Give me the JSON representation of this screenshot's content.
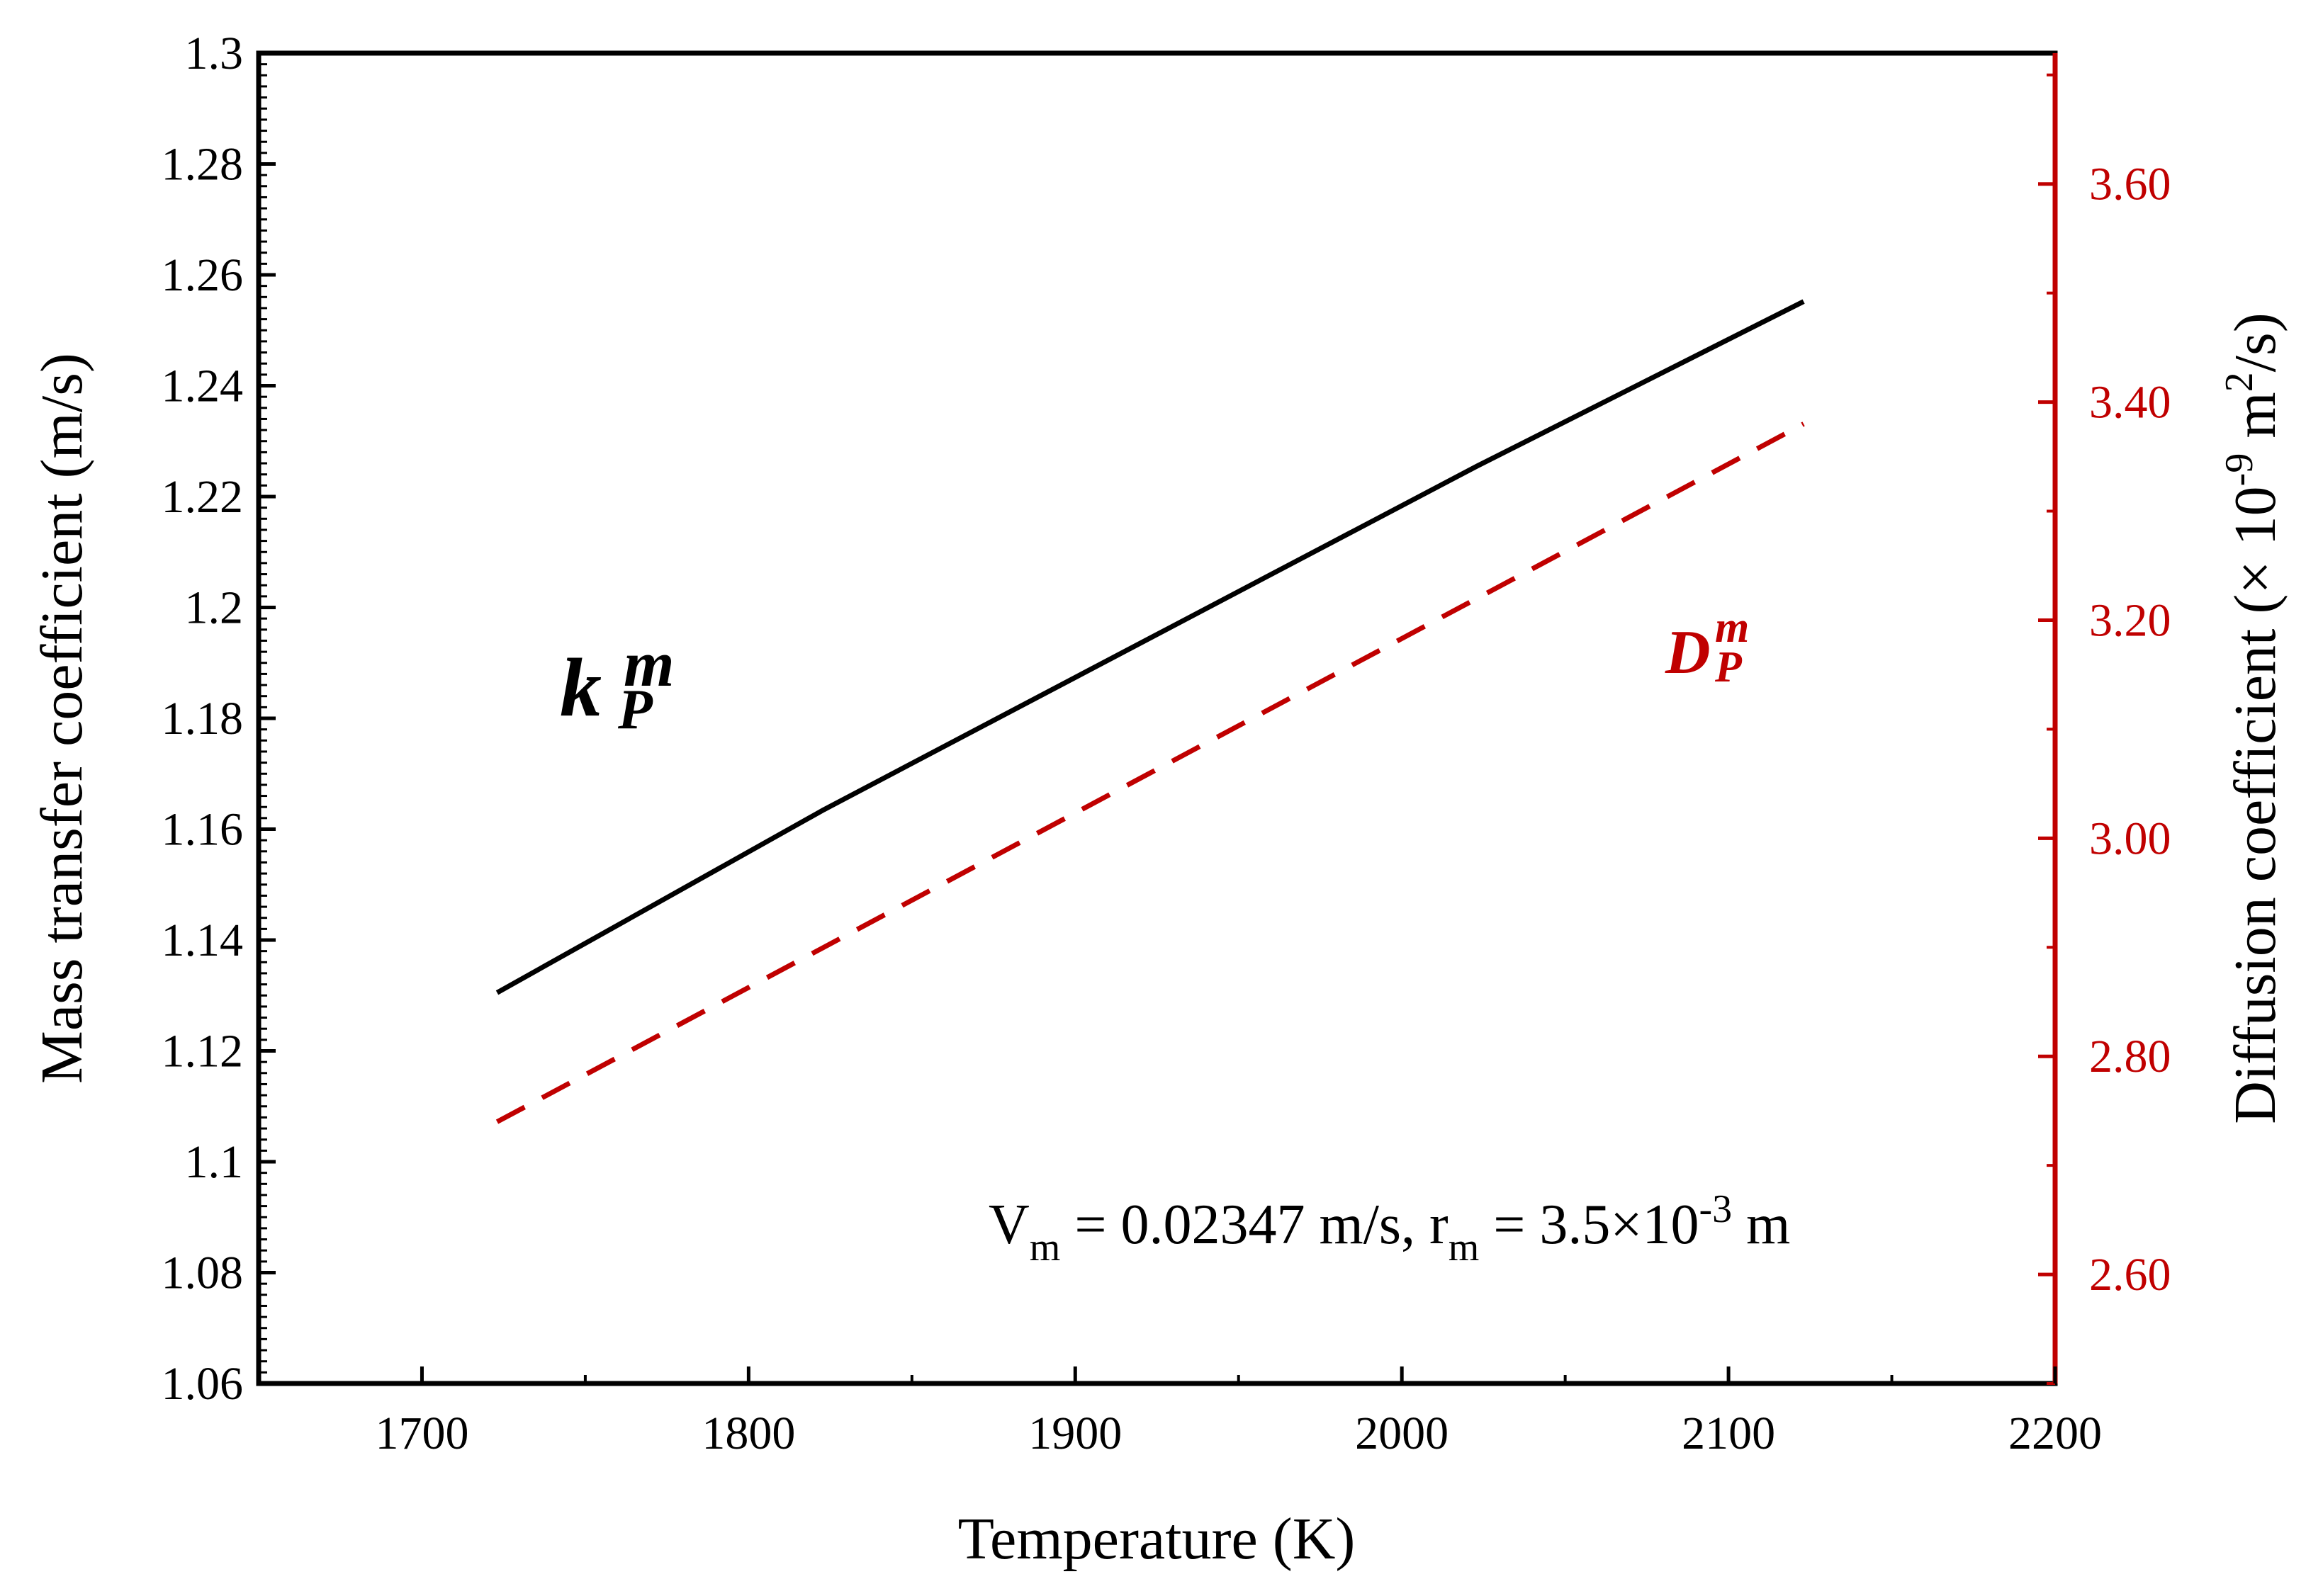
{
  "chart_data": {
    "type": "line",
    "x": [
      1723,
      1823,
      1923,
      2023,
      2123
    ],
    "xlim": [
      1650,
      2200
    ],
    "xticks": [
      "1700",
      "1800",
      "1900",
      "2000",
      "2100",
      "2200"
    ],
    "xlabel": "Temperature (K)",
    "left_axis": {
      "label": "Mass transfer coefficient (m/s)",
      "ylim": [
        1.06,
        1.3
      ],
      "ticks": [
        "1.06",
        "1.08",
        "1.1",
        "1.12",
        "1.14",
        "1.16",
        "1.18",
        "1.2",
        "1.22",
        "1.24",
        "1.26",
        "1.28",
        "1.3"
      ]
    },
    "right_axis": {
      "label_prefix": "Diffusion coefficient (× 10",
      "label_exp": "-9",
      "label_mid": " m",
      "label_exp2": "2",
      "label_suffix": "/s)",
      "ylim": [
        2.5,
        3.72
      ],
      "ticks": [
        "2.60",
        "2.80",
        "3.00",
        "3.20",
        "3.40",
        "3.60"
      ],
      "color": "#c00000"
    },
    "series": [
      {
        "name": "k_P^m",
        "axis": "left",
        "style": "solid",
        "color": "#000000",
        "values": [
          1.1305,
          1.1635,
          1.1945,
          1.2255,
          1.2552
        ]
      },
      {
        "name": "D_P^m",
        "axis": "right",
        "style": "dashed",
        "color": "#c00000",
        "values": [
          2.74,
          2.9,
          3.06,
          3.22,
          3.38
        ]
      }
    ],
    "labels": {
      "k_base": "k",
      "k_sup": "m",
      "k_sub": "P",
      "d_base": "D",
      "d_sup": "m",
      "d_sub": "P"
    },
    "annotation": {
      "v_base": "V",
      "v_sub": "m",
      "v_mid": " = 0.02347 m/s, r",
      "r_sub": "m",
      "r_mid": " = 3.5×10",
      "r_exp": "-3",
      "r_end": " m"
    }
  }
}
